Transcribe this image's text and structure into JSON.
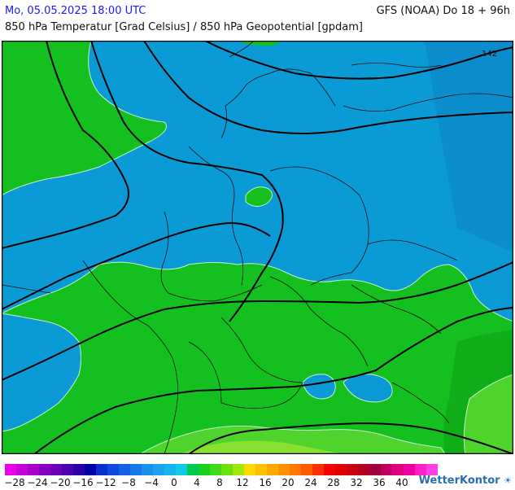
{
  "header": {
    "date": "Mo, 05.05.2025 18:00 UTC",
    "model": "GFS (NOAA) Do 18 + 96h",
    "subtitle": "850 hPa Temperatur [Grad Celsius] / 850 hPa Geopotential [gpdam]"
  },
  "map": {
    "contour_label": "142",
    "colors": {
      "blue": "#0a9ad6",
      "blue_dark": "#0b8ccc",
      "green": "#14c020",
      "green_dark": "#0fae18",
      "green_light": "#4ed42c",
      "lime": "#88e030",
      "border": "#111111",
      "isobar": "#000000"
    }
  },
  "legend": {
    "colors": [
      "#e800e8",
      "#c800d8",
      "#a800c8",
      "#8a00c0",
      "#6c00b8",
      "#4e00b0",
      "#2a00aa",
      "#0000a8",
      "#0a2ed0",
      "#1048e0",
      "#1460e6",
      "#1878ea",
      "#1c8eee",
      "#1aa2f0",
      "#18b4ee",
      "#10c8e8",
      "#00c850",
      "#18d020",
      "#40d818",
      "#6ee010",
      "#a0e808",
      "#ffd800",
      "#ffc000",
      "#ffa800",
      "#ff9000",
      "#ff7800",
      "#ff5a00",
      "#ff3000",
      "#f80000",
      "#e00000",
      "#c80010",
      "#b00020",
      "#a00040",
      "#c00060",
      "#e00080",
      "#f000a0",
      "#ff20c8",
      "#ff40e8"
    ],
    "labels": [
      "−28",
      "−24",
      "−20",
      "−16",
      "−12",
      "−8",
      "−4",
      "0",
      "4",
      "8",
      "12",
      "16",
      "20",
      "24",
      "28",
      "32",
      "36",
      "40"
    ]
  },
  "logo": {
    "text": "WetterKontor"
  }
}
